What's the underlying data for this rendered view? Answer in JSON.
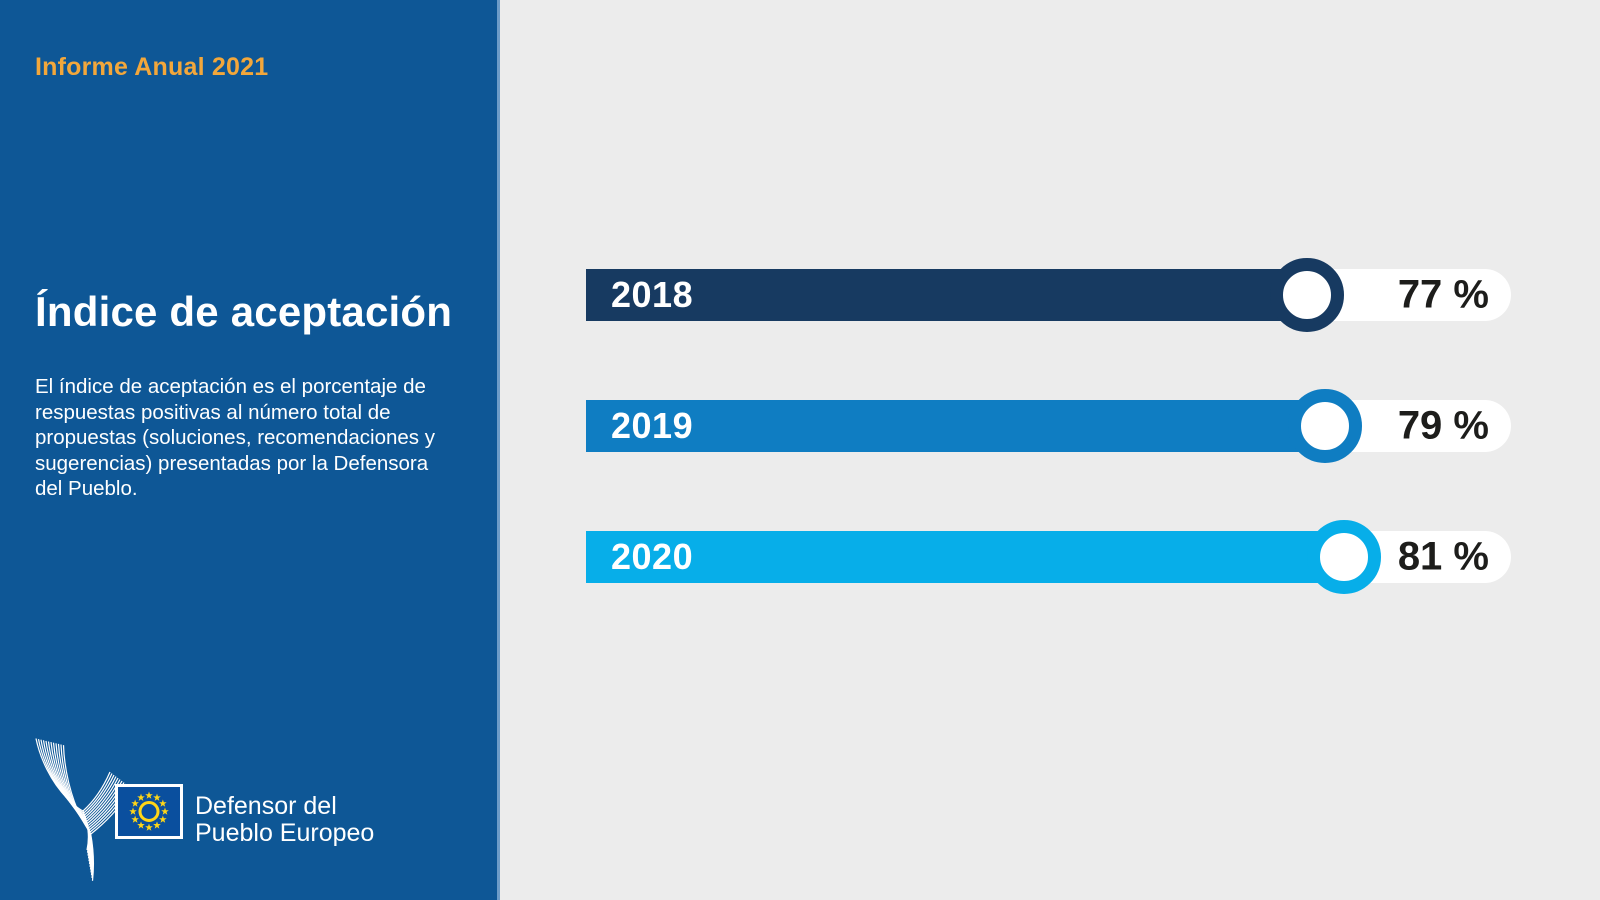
{
  "sidebar": {
    "report_label": "Informe Anual 2021",
    "title": "Índice de aceptación",
    "description": "El índice de aceptación es el porcentaje de\nrespuestas positivas al número total de\npropuestas (soluciones, recomendaciones y\nsugerencias) presentadas por la Defensora\ndel Pueblo.",
    "logo": {
      "org_line1": "Defensor del",
      "org_line2": "Pueblo Europeo",
      "flag_icon": "eu-flag-with-star-circle-and-ring",
      "bird_icon": "ombudsman-line-bird"
    }
  },
  "chart_data": {
    "type": "bar",
    "orientation": "horizontal",
    "title": "Índice de aceptación",
    "categories": [
      "2018",
      "2019",
      "2020"
    ],
    "values": [
      77,
      79,
      81
    ],
    "unit": "%",
    "value_labels": [
      "77 %",
      "79 %",
      "81 %"
    ],
    "bar_colors": [
      "#173A61",
      "#0F7DC2",
      "#07AEE9"
    ],
    "xlim": [
      0,
      100
    ],
    "grid": false,
    "legend": false,
    "value_label_position": "right-pill"
  },
  "colors": {
    "sidebar_bg": "#0E5796",
    "sidebar_edge": "#6D9CC8",
    "background": "#ECECEC",
    "accent_yellow": "#F2A73B",
    "value_text": "#1D1D1B",
    "flag_blue": "#0A4F9E",
    "star_yellow": "#FFD617",
    "white": "#FFFFFF"
  }
}
